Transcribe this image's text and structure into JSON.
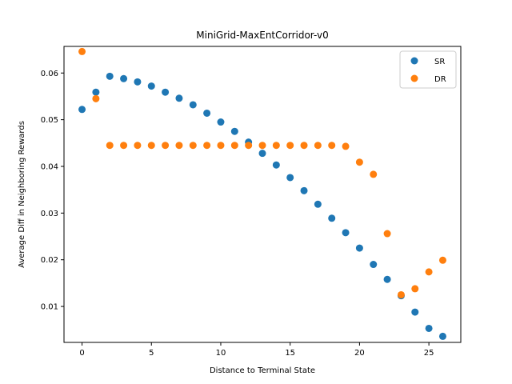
{
  "chart_data": {
    "type": "scatter",
    "title": "MiniGrid-MaxEntCorridor-v0",
    "xlabel": "Distance to Terminal State",
    "ylabel": "Average Diff in Neighboring Rewards",
    "xlim": [
      -1.3,
      27.3
    ],
    "ylim": [
      0.0023,
      0.0657
    ],
    "xticks": [
      0,
      5,
      10,
      15,
      20,
      25
    ],
    "yticks": [
      0.01,
      0.02,
      0.03,
      0.04,
      0.05,
      0.06
    ],
    "xtick_labels": [
      "0",
      "5",
      "10",
      "15",
      "20",
      "25"
    ],
    "ytick_labels": [
      "0.01",
      "0.02",
      "0.03",
      "0.04",
      "0.05",
      "0.06"
    ],
    "grid": false,
    "legend_position": "top-right",
    "series": [
      {
        "name": "SR",
        "color": "#1f77b4",
        "x": [
          0,
          1,
          2,
          3,
          4,
          5,
          6,
          7,
          8,
          9,
          10,
          11,
          12,
          13,
          14,
          15,
          16,
          17,
          18,
          19,
          20,
          21,
          22,
          23,
          24,
          25,
          26
        ],
        "y": [
          0.0522,
          0.0559,
          0.0593,
          0.0588,
          0.0581,
          0.0572,
          0.0559,
          0.0546,
          0.0532,
          0.0514,
          0.0495,
          0.0475,
          0.0452,
          0.0428,
          0.0403,
          0.0376,
          0.0348,
          0.0319,
          0.0289,
          0.0258,
          0.0225,
          0.019,
          0.0158,
          0.0123,
          0.0088,
          0.0053,
          0.0036
        ]
      },
      {
        "name": "DR",
        "color": "#ff7f0e",
        "x": [
          0,
          1,
          2,
          3,
          4,
          5,
          6,
          7,
          8,
          9,
          10,
          11,
          12,
          13,
          14,
          15,
          16,
          17,
          18,
          19,
          20,
          21,
          22,
          23,
          24,
          25,
          26
        ],
        "y": [
          0.0646,
          0.0545,
          0.0445,
          0.0445,
          0.0445,
          0.0445,
          0.0445,
          0.0445,
          0.0445,
          0.0445,
          0.0445,
          0.0445,
          0.0445,
          0.0445,
          0.0445,
          0.0445,
          0.0445,
          0.0445,
          0.0445,
          0.0443,
          0.0409,
          0.0383,
          0.0256,
          0.0125,
          0.0138,
          0.0174,
          0.0199
        ]
      }
    ]
  }
}
